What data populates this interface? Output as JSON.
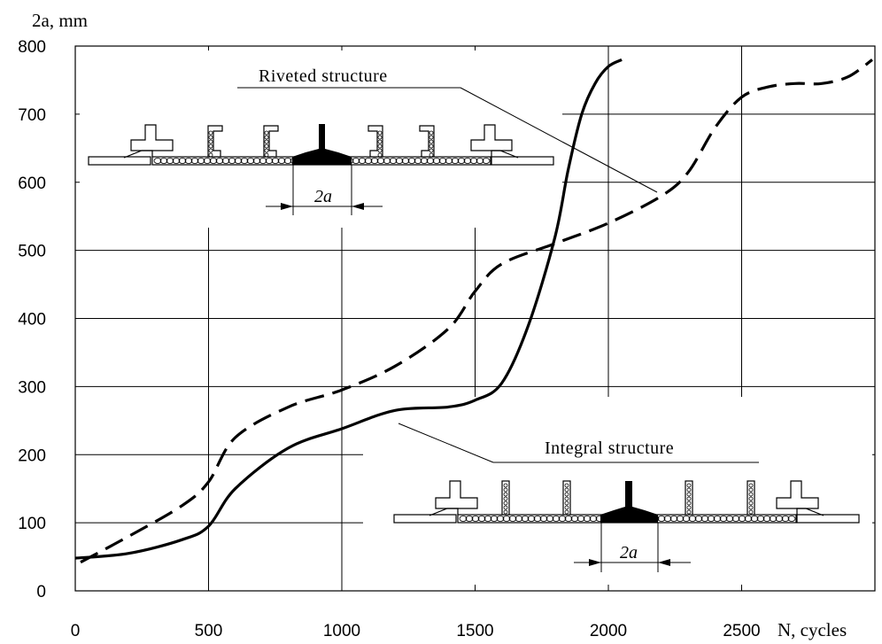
{
  "chart_data": {
    "type": "line",
    "y_axis_title": "2a, mm",
    "x_axis_title": "N, cycles",
    "xlim": [
      0,
      3000
    ],
    "ylim": [
      0,
      800
    ],
    "x_ticks": [
      0,
      500,
      1000,
      1500,
      2000,
      2500
    ],
    "y_ticks": [
      0,
      100,
      200,
      300,
      400,
      500,
      600,
      700,
      800
    ],
    "grid": true,
    "series": [
      {
        "name": "Riveted structure",
        "style": "dashed",
        "x": [
          20,
          200,
          400,
          500,
          600,
          800,
          1000,
          1200,
          1400,
          1500,
          1600,
          1800,
          2000,
          2200,
          2300,
          2400,
          2500,
          2600,
          2700,
          2800,
          2900,
          2990
        ],
        "y": [
          42,
          80,
          125,
          160,
          225,
          270,
          295,
          330,
          385,
          440,
          480,
          510,
          540,
          580,
          615,
          680,
          725,
          740,
          745,
          745,
          755,
          780
        ]
      },
      {
        "name": "Integral structure",
        "style": "solid",
        "x": [
          0,
          200,
          400,
          500,
          600,
          800,
          1000,
          1200,
          1400,
          1500,
          1600,
          1700,
          1800,
          1850,
          1900,
          1950,
          2000,
          2050
        ],
        "y": [
          48,
          55,
          75,
          95,
          150,
          210,
          238,
          265,
          270,
          280,
          305,
          390,
          520,
          620,
          700,
          745,
          770,
          780
        ]
      }
    ],
    "inset_labels": {
      "riveted": "Riveted structure",
      "integral": "Integral structure",
      "riveted_dim": "2a",
      "integral_dim": "2a"
    }
  }
}
